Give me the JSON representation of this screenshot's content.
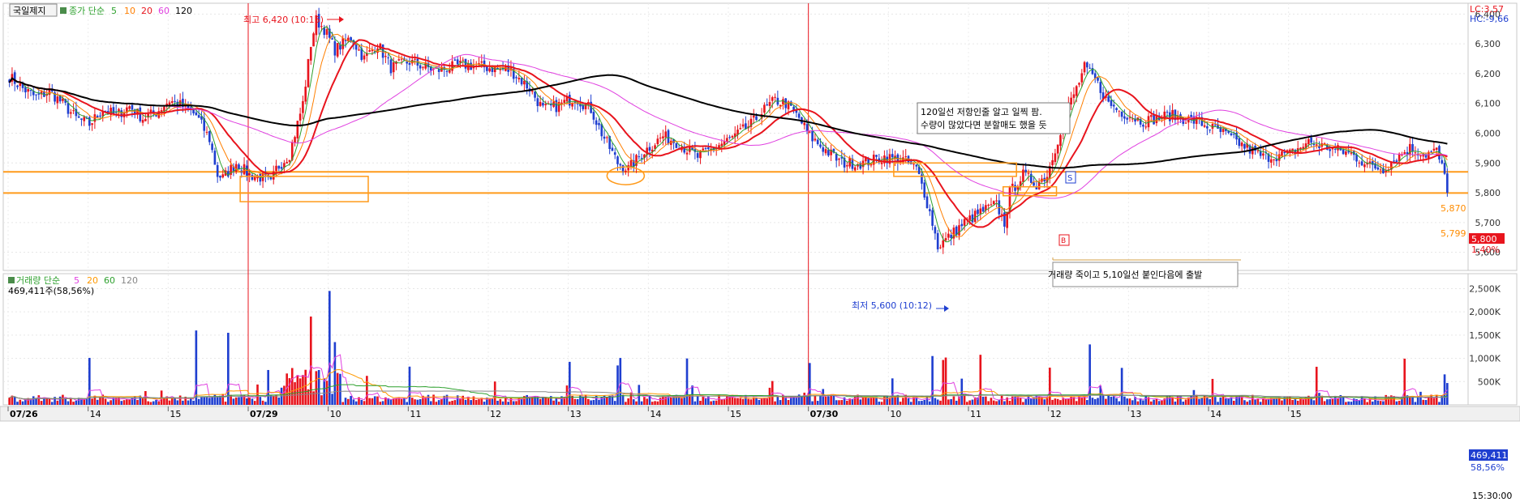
{
  "stock_name": "국일제지",
  "price_legend": {
    "prefix": "종가 단순",
    "periods": [
      "5",
      "10",
      "20",
      "60",
      "120"
    ],
    "colors": [
      "#2fa12f",
      "#ff7f00",
      "#e8141d",
      "#e040e0",
      "#000000"
    ]
  },
  "volume_legend": {
    "prefix": "거래량 단순",
    "periods": [
      "5",
      "20",
      "60",
      "120"
    ],
    "colors": [
      "#e040e0",
      "#ff9900",
      "#2fa12f",
      "#888888"
    ],
    "current": "469,411주(58,56%)"
  },
  "top_right": {
    "lc": "LC:3,57",
    "hc": "HC:-9,66"
  },
  "annotations": {
    "high": "최고 6,420 (10:15)",
    "low": "최저 5,600 (10:12)",
    "note1_line1": "120일선 저항인줄 알고 일찍 팜.",
    "note1_line2": "수량이 많았다면 분할매도 했을 듯",
    "note2": "거래량 죽이고 5,10일선 붙인다음에 출발",
    "marker_s": "S",
    "marker_b": "B"
  },
  "price_badges": {
    "line1": "5,870",
    "line2": "5,799",
    "current": "5,800",
    "change": "1,40%"
  },
  "volume_badges": {
    "current": "469,411",
    "percent": "58,56%"
  },
  "time_label": "15:30:00",
  "chart_data": {
    "type": "candlestick",
    "interval": "intraday",
    "x_ticks": [
      "07/26",
      "14",
      "15",
      "07/29",
      "10",
      "11",
      "12",
      "13",
      "14",
      "15",
      "07/30",
      "10",
      "11",
      "12",
      "13",
      "14",
      "15"
    ],
    "y_ticks": [
      "6,400",
      "6,300",
      "6,200",
      "6,100",
      "6,000",
      "5,900",
      "5,800",
      "5,700",
      "5,600"
    ],
    "ylim": [
      5550,
      6420
    ],
    "volume_ticks": [
      "2,500K",
      "2,000K",
      "1,500K",
      "1,000K",
      "500K"
    ],
    "volume_ylim": [
      0,
      2700000
    ],
    "horizontal_lines": [
      5870,
      5799
    ],
    "high": 6420,
    "low": 5600,
    "last_price": 5800,
    "last_volume": 469411,
    "close_path": [
      [
        0,
        6190
      ],
      [
        5,
        6150
      ],
      [
        10,
        6120
      ],
      [
        15,
        6140
      ],
      [
        20,
        6100
      ],
      [
        25,
        6050
      ],
      [
        30,
        6030
      ],
      [
        35,
        6080
      ],
      [
        40,
        6060
      ],
      [
        45,
        6090
      ],
      [
        50,
        6050
      ],
      [
        55,
        6070
      ],
      [
        60,
        6110
      ],
      [
        65,
        6090
      ],
      [
        70,
        6060
      ],
      [
        75,
        5980
      ],
      [
        78,
        5860
      ],
      [
        80,
        5850
      ],
      [
        85,
        5900
      ],
      [
        90,
        5860
      ],
      [
        95,
        5850
      ],
      [
        98,
        5830
      ],
      [
        100,
        5880
      ],
      [
        105,
        5930
      ],
      [
        110,
        6100
      ],
      [
        113,
        6300
      ],
      [
        115,
        6380
      ],
      [
        118,
        6350
      ],
      [
        122,
        6280
      ],
      [
        128,
        6320
      ],
      [
        133,
        6250
      ],
      [
        138,
        6300
      ],
      [
        143,
        6220
      ],
      [
        150,
        6240
      ],
      [
        160,
        6210
      ],
      [
        170,
        6230
      ],
      [
        180,
        6220
      ],
      [
        188,
        6210
      ],
      [
        195,
        6150
      ],
      [
        200,
        6080
      ],
      [
        205,
        6090
      ],
      [
        212,
        6120
      ],
      [
        218,
        6080
      ],
      [
        222,
        6000
      ],
      [
        228,
        5900
      ],
      [
        232,
        5880
      ],
      [
        238,
        5940
      ],
      [
        245,
        5990
      ],
      [
        250,
        5970
      ],
      [
        258,
        5920
      ],
      [
        266,
        5960
      ],
      [
        272,
        5990
      ],
      [
        278,
        6030
      ],
      [
        283,
        6080
      ],
      [
        287,
        6110
      ],
      [
        291,
        6100
      ],
      [
        296,
        6050
      ],
      [
        300,
        5990
      ],
      [
        305,
        5950
      ],
      [
        312,
        5900
      ],
      [
        320,
        5900
      ],
      [
        328,
        5920
      ],
      [
        335,
        5910
      ],
      [
        340,
        5880
      ],
      [
        343,
        5800
      ],
      [
        346,
        5700
      ],
      [
        348,
        5620
      ],
      [
        352,
        5650
      ],
      [
        358,
        5700
      ],
      [
        365,
        5740
      ],
      [
        370,
        5760
      ],
      [
        373,
        5700
      ],
      [
        375,
        5800
      ],
      [
        380,
        5860
      ],
      [
        385,
        5830
      ],
      [
        389,
        5860
      ],
      [
        392,
        5950
      ],
      [
        396,
        6070
      ],
      [
        400,
        6150
      ],
      [
        403,
        6220
      ],
      [
        407,
        6180
      ],
      [
        412,
        6100
      ],
      [
        417,
        6070
      ],
      [
        425,
        6040
      ],
      [
        435,
        6060
      ],
      [
        445,
        6040
      ],
      [
        455,
        6000
      ],
      [
        462,
        5960
      ],
      [
        470,
        5920
      ],
      [
        480,
        5930
      ],
      [
        487,
        5970
      ],
      [
        495,
        5950
      ],
      [
        503,
        5930
      ],
      [
        510,
        5890
      ],
      [
        515,
        5880
      ],
      [
        520,
        5920
      ],
      [
        525,
        5950
      ],
      [
        531,
        5930
      ],
      [
        535,
        5940
      ],
      [
        540,
        5800
      ]
    ]
  }
}
